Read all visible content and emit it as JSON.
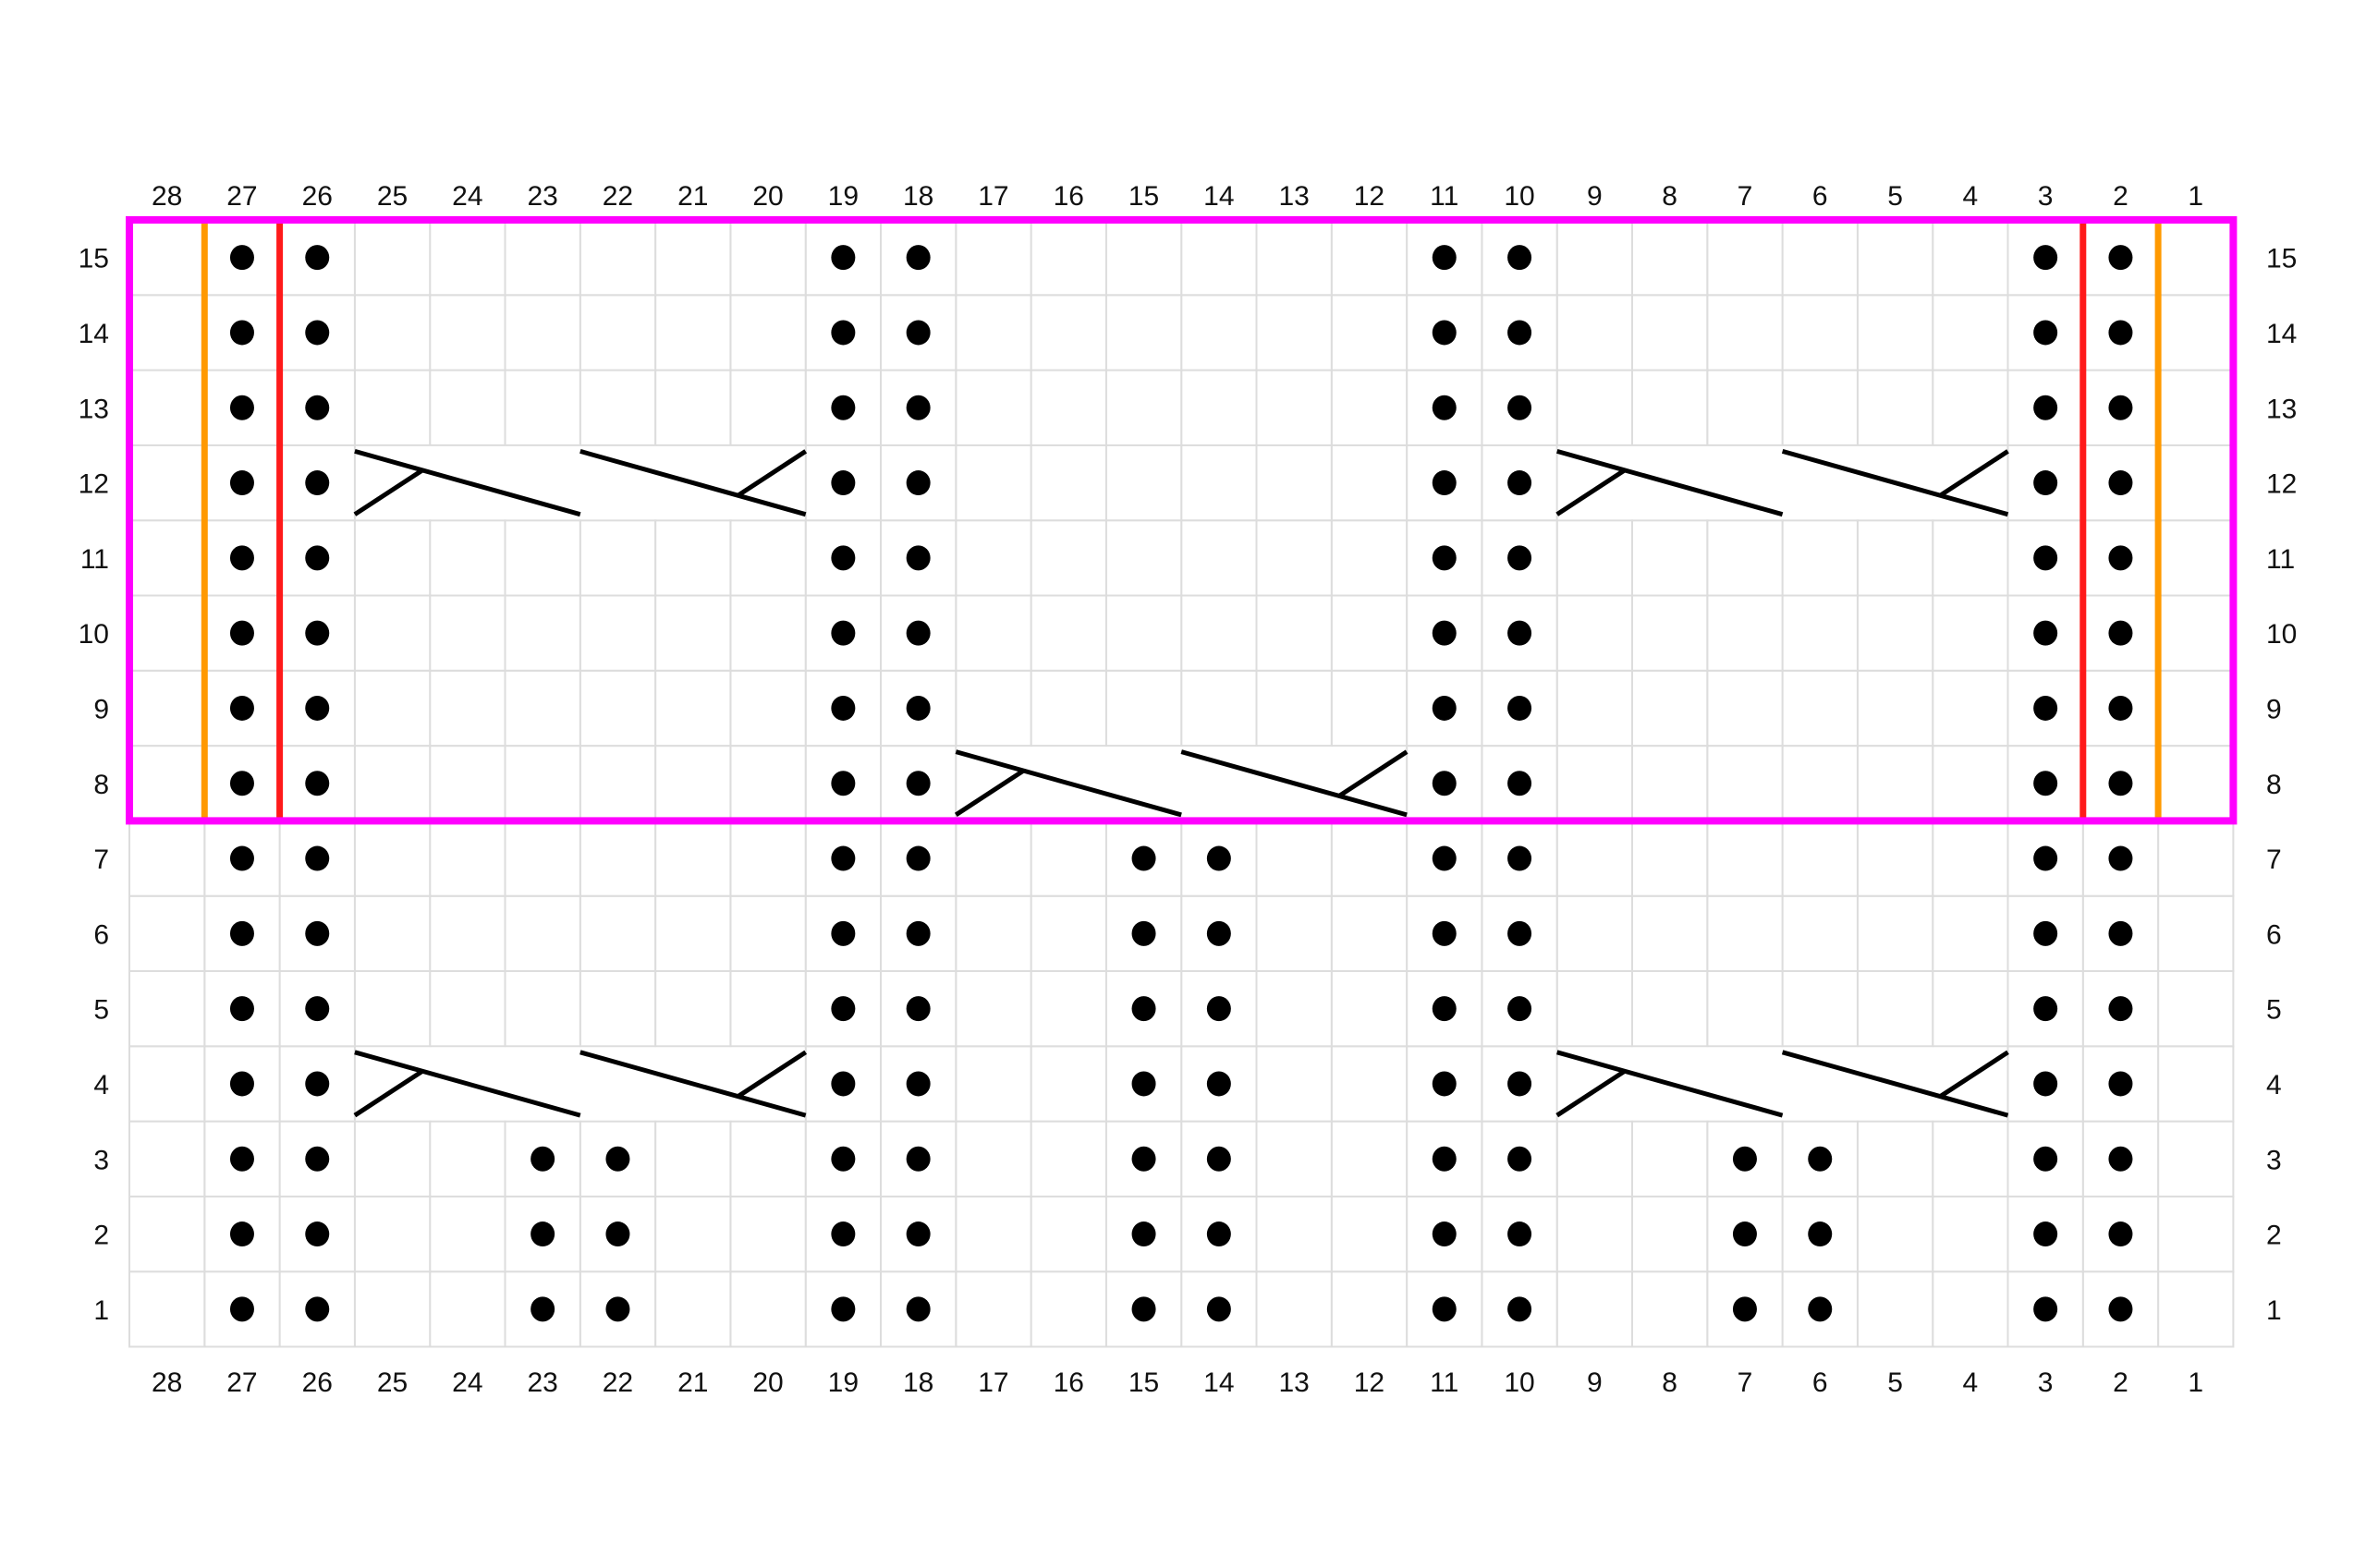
{
  "chart": {
    "columns": 28,
    "rows": 15,
    "column_labels": [
      28,
      27,
      26,
      25,
      24,
      23,
      22,
      21,
      20,
      19,
      18,
      17,
      16,
      15,
      14,
      13,
      12,
      11,
      10,
      9,
      8,
      7,
      6,
      5,
      4,
      3,
      2,
      1
    ],
    "row_labels": [
      15,
      14,
      13,
      12,
      11,
      10,
      9,
      8,
      7,
      6,
      5,
      4,
      3,
      2,
      1
    ],
    "purl_stitches": [
      {
        "row": 15,
        "cols": [
          27,
          26,
          19,
          18,
          11,
          10,
          3,
          2
        ]
      },
      {
        "row": 14,
        "cols": [
          27,
          26,
          19,
          18,
          11,
          10,
          3,
          2
        ]
      },
      {
        "row": 13,
        "cols": [
          27,
          26,
          19,
          18,
          11,
          10,
          3,
          2
        ]
      },
      {
        "row": 12,
        "cols": [
          27,
          26,
          19,
          18,
          11,
          10,
          3,
          2
        ]
      },
      {
        "row": 11,
        "cols": [
          27,
          26,
          19,
          18,
          11,
          10,
          3,
          2
        ]
      },
      {
        "row": 10,
        "cols": [
          27,
          26,
          19,
          18,
          11,
          10,
          3,
          2
        ]
      },
      {
        "row": 9,
        "cols": [
          27,
          26,
          19,
          18,
          11,
          10,
          3,
          2
        ]
      },
      {
        "row": 8,
        "cols": [
          27,
          26,
          19,
          18,
          11,
          10,
          3,
          2
        ]
      },
      {
        "row": 7,
        "cols": [
          27,
          26,
          19,
          18,
          15,
          14,
          11,
          10,
          3,
          2
        ]
      },
      {
        "row": 6,
        "cols": [
          27,
          26,
          19,
          18,
          15,
          14,
          11,
          10,
          3,
          2
        ]
      },
      {
        "row": 5,
        "cols": [
          27,
          26,
          19,
          18,
          15,
          14,
          11,
          10,
          3,
          2
        ]
      },
      {
        "row": 4,
        "cols": [
          27,
          26,
          19,
          18,
          15,
          14,
          11,
          10,
          3,
          2
        ]
      },
      {
        "row": 3,
        "cols": [
          27,
          26,
          23,
          22,
          19,
          18,
          15,
          14,
          11,
          10,
          7,
          6,
          3,
          2
        ]
      },
      {
        "row": 2,
        "cols": [
          27,
          26,
          23,
          22,
          19,
          18,
          15,
          14,
          11,
          10,
          7,
          6,
          3,
          2
        ]
      },
      {
        "row": 1,
        "cols": [
          27,
          26,
          23,
          22,
          19,
          18,
          15,
          14,
          11,
          10,
          7,
          6,
          3,
          2
        ]
      }
    ],
    "cables": [
      {
        "row": 12,
        "from_col": 25,
        "to_col": 20
      },
      {
        "row": 12,
        "from_col": 9,
        "to_col": 4
      },
      {
        "row": 8,
        "from_col": 17,
        "to_col": 12
      },
      {
        "row": 4,
        "from_col": 25,
        "to_col": 20
      },
      {
        "row": 4,
        "from_col": 9,
        "to_col": 4
      }
    ],
    "repeat_box": {
      "rows": [
        8,
        15
      ],
      "color": "#ff00ff"
    },
    "markers": [
      {
        "between_cols": [
          28,
          27
        ],
        "rows": [
          8,
          15
        ],
        "color": "#ff9900"
      },
      {
        "between_cols": [
          27,
          26
        ],
        "rows": [
          8,
          15
        ],
        "color": "#ff1a1a"
      },
      {
        "between_cols": [
          3,
          2
        ],
        "rows": [
          8,
          15
        ],
        "color": "#ff1a1a"
      },
      {
        "between_cols": [
          2,
          1
        ],
        "rows": [
          8,
          15
        ],
        "color": "#ff9900"
      }
    ],
    "colors": {
      "grid": "#dddddd",
      "symbol": "#000000"
    }
  }
}
